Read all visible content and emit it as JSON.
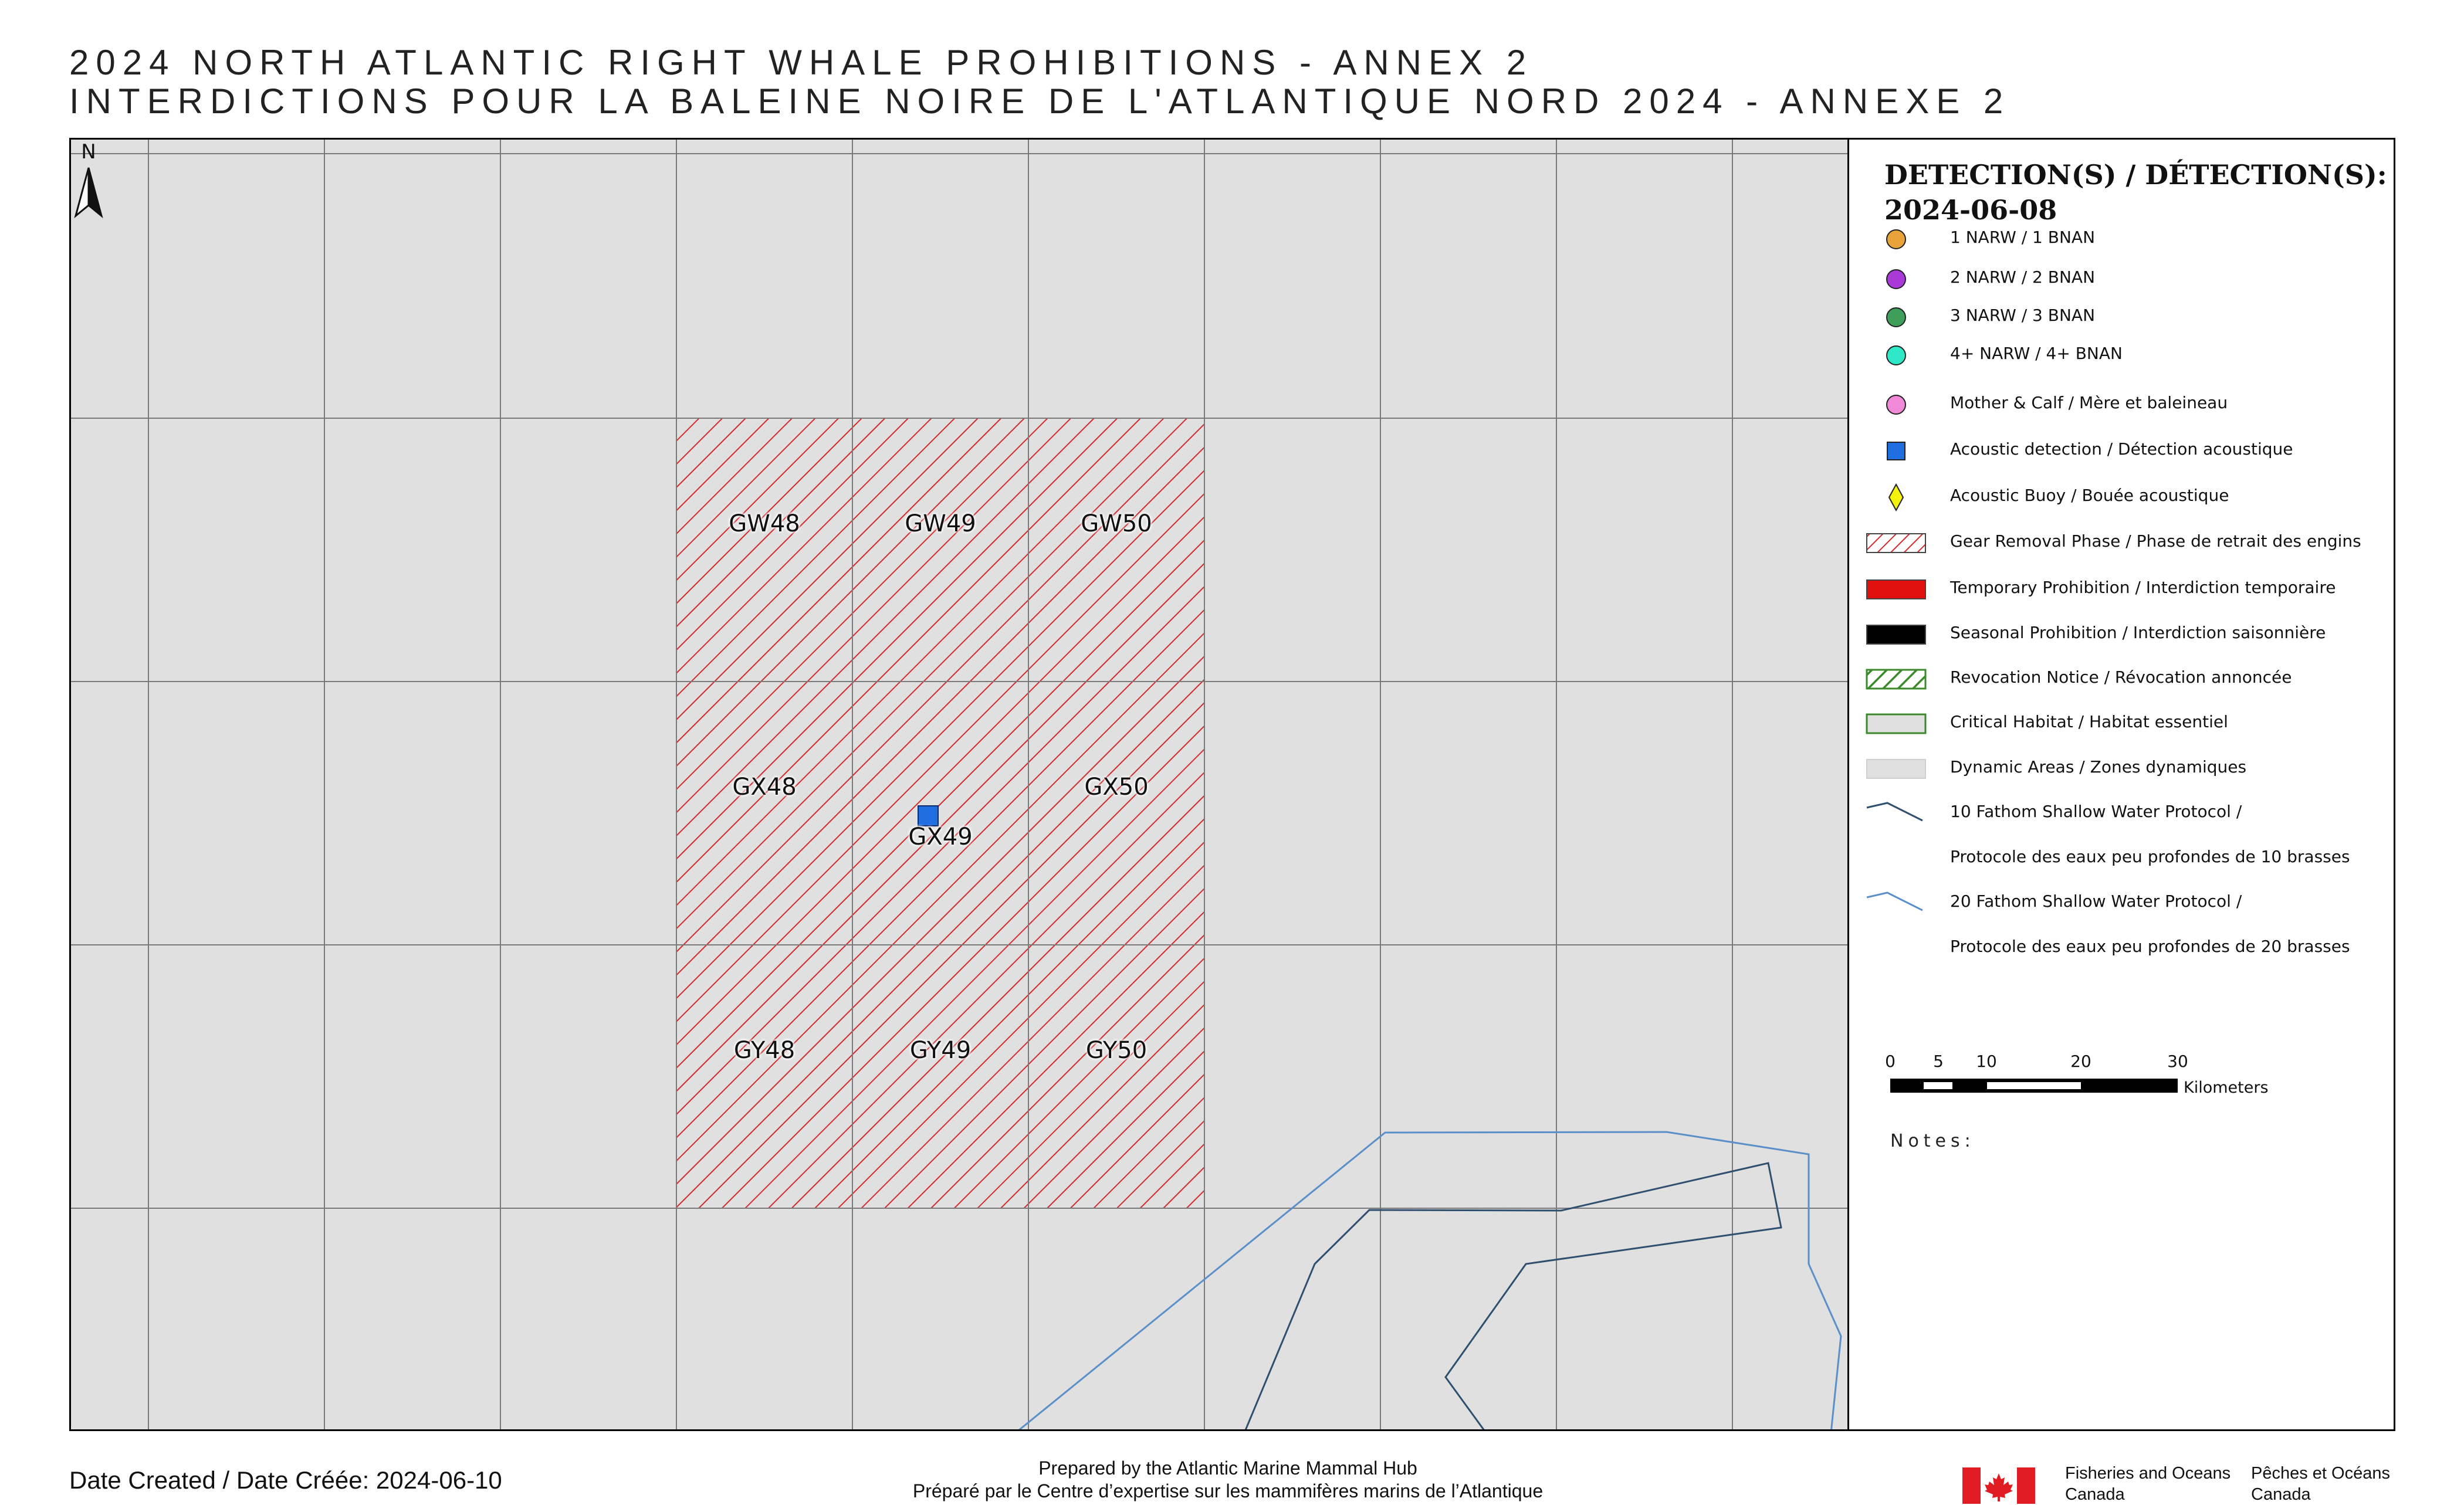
{
  "title": {
    "line1": "2024 NORTH ATLANTIC RIGHT WHALE PROHIBITIONS - ANNEX 2",
    "line2": "INTERDICTIONS POUR LA BALEINE NOIRE DE L'ATLANTIQUE NORD 2024 - ANNEXE 2"
  },
  "map": {
    "north_label": "N",
    "grid_cells": [
      {
        "id": "GW48",
        "status": "Gear Removal Phase"
      },
      {
        "id": "GW49",
        "status": "Gear Removal Phase"
      },
      {
        "id": "GW50",
        "status": "Gear Removal Phase"
      },
      {
        "id": "GX48",
        "status": "Gear Removal Phase"
      },
      {
        "id": "GX49",
        "status": "Gear Removal Phase"
      },
      {
        "id": "GX50",
        "status": "Gear Removal Phase"
      },
      {
        "id": "GY48",
        "status": "Gear Removal Phase"
      },
      {
        "id": "GY49",
        "status": "Gear Removal Phase"
      },
      {
        "id": "GY50",
        "status": "Gear Removal Phase"
      }
    ],
    "detections": [
      {
        "type": "Acoustic detection",
        "cell": "GX49"
      }
    ],
    "colors": {
      "background": "#e0e0e0",
      "grid_line": "#7a7a7a",
      "hatch": "#d22b2b",
      "fathom10": "#2f4f6f",
      "fathom20": "#5b8fc7",
      "acoustic": "#1f6fe0"
    }
  },
  "legend": {
    "title_line1": "DETECTION(S) / DÉTECTION(S):",
    "title_line2": "2024-06-08",
    "items": [
      {
        "label": "1 NARW / 1 BNAN",
        "symbol": "circle",
        "color": "#e8a23a"
      },
      {
        "label": "2 NARW / 2 BNAN",
        "symbol": "circle",
        "color": "#a93ad8"
      },
      {
        "label": "3 NARW / 3 BNAN",
        "symbol": "circle",
        "color": "#3f9e5a"
      },
      {
        "label": "4+ NARW / 4+ BNAN",
        "symbol": "circle",
        "color": "#2fe8c8"
      },
      {
        "label": "Mother & Calf / Mère et baleineau",
        "symbol": "circle",
        "color": "#f08ad8"
      },
      {
        "label": "Acoustic detection / Détection acoustique",
        "symbol": "square",
        "color": "#1f6fe0"
      },
      {
        "label": "Acoustic Buoy / Bouée acoustique",
        "symbol": "diamond",
        "color": "#f2f20a"
      },
      {
        "label": "Gear Removal Phase / Phase de retrait des engins",
        "symbol": "hatch-red",
        "color": "#d22b2b"
      },
      {
        "label": "Temporary Prohibition / Interdiction temporaire",
        "symbol": "fill",
        "color": "#e01010"
      },
      {
        "label": "Seasonal Prohibition / Interdiction saisonnière",
        "symbol": "fill",
        "color": "#000000"
      },
      {
        "label": "Revocation Notice / Révocation annoncée",
        "symbol": "hatch-green",
        "color": "#3a8a2a"
      },
      {
        "label": "Critical Habitat / Habitat essentiel",
        "symbol": "outline-green",
        "color": "#3a8a2a"
      },
      {
        "label": "Dynamic Areas / Zones dynamiques",
        "symbol": "fill-grey",
        "color": "#e0e0e0"
      },
      {
        "label": "10 Fathom Shallow Water Protocol /",
        "symbol": "line-dark",
        "color": "#2f4f6f"
      },
      {
        "label": "Protocole des eaux peu profondes de 10 brasses",
        "symbol": "none",
        "color": ""
      },
      {
        "label": "20 Fathom Shallow Water Protocol /",
        "symbol": "line-light",
        "color": "#5b8fc7"
      },
      {
        "label": "Protocole des eaux peu profondes de 20 brasses",
        "symbol": "none",
        "color": ""
      }
    ],
    "scale": {
      "ticks": [
        "0",
        "5",
        "10",
        "20",
        "30"
      ],
      "unit": "Kilometers"
    },
    "notes_label": "Notes:"
  },
  "footer": {
    "date_created": "Date Created / Date Créée: 2024-06-10",
    "prepared_en": "Prepared by the Atlantic Marine Mammal Hub",
    "prepared_fr": "Préparé par le Centre d’expertise sur les mammifères marins de l’Atlantique",
    "dfo_en_1": "Fisheries and Oceans",
    "dfo_en_2": "Canada",
    "dfo_fr_1": "Pêches et Océans",
    "dfo_fr_2": "Canada"
  }
}
